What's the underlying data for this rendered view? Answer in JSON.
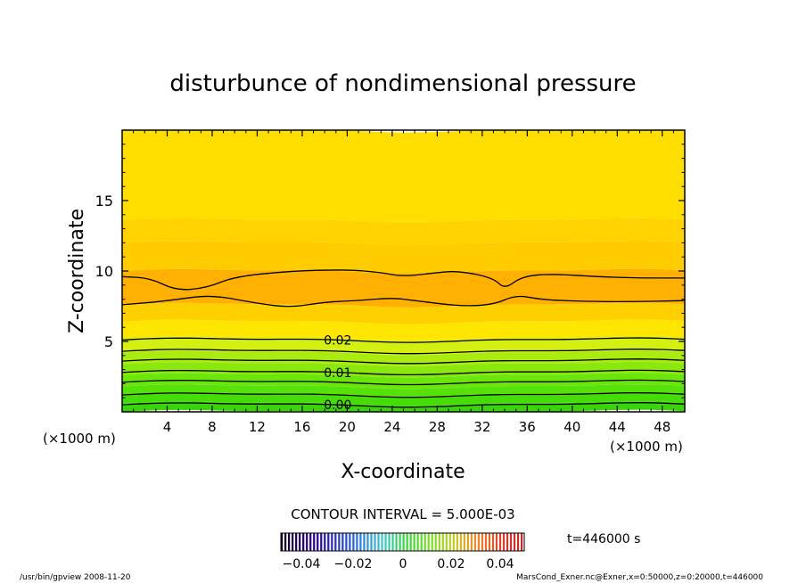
{
  "chart_data": {
    "type": "heatmap",
    "title": "disturbunce of nondimensional pressure",
    "xlabel": "X-coordinate",
    "ylabel": "Z-coordinate",
    "x_unit_left": "(×1000 m)",
    "x_unit_right": "(×1000 m)",
    "xlim": [
      0,
      50
    ],
    "ylim": [
      0,
      20
    ],
    "x_ticks": [
      4,
      8,
      12,
      16,
      20,
      24,
      28,
      32,
      36,
      40,
      44,
      48
    ],
    "y_ticks": [
      5,
      10,
      15
    ],
    "bands": [
      {
        "z0": 0.0,
        "z1": 0.6,
        "color": "#39d40a"
      },
      {
        "z0": 0.6,
        "z1": 1.2,
        "color": "#45dc0a"
      },
      {
        "z0": 1.2,
        "z1": 1.8,
        "color": "#57e10a"
      },
      {
        "z0": 1.8,
        "z1": 2.6,
        "color": "#6ae60b"
      },
      {
        "z0": 2.6,
        "z1": 3.4,
        "color": "#8ae80d"
      },
      {
        "z0": 3.4,
        "z1": 4.2,
        "color": "#aaeb10"
      },
      {
        "z0": 4.2,
        "z1": 5.2,
        "color": "#d4ef12"
      },
      {
        "z0": 5.2,
        "z1": 6.4,
        "color": "#ffe600"
      },
      {
        "z0": 6.4,
        "z1": 7.6,
        "color": "#ffd000"
      },
      {
        "z0": 7.6,
        "z1": 10.0,
        "color": "#ffb000"
      },
      {
        "z0": 10.0,
        "z1": 12.0,
        "color": "#ffcc00"
      },
      {
        "z0": 12.0,
        "z1": 13.6,
        "color": "#ffd200"
      },
      {
        "z0": 13.6,
        "z1": 20.0,
        "color": "#ffde00"
      }
    ],
    "contour_levels_z": [
      0.5,
      1.2,
      2.1,
      2.8,
      3.6,
      4.3,
      5.1
    ],
    "contour_labels": [
      {
        "text": "0.00",
        "x": 17.5,
        "z": 0.5
      },
      {
        "text": "0.01",
        "x": 17.5,
        "z": 2.8
      },
      {
        "text": "0.02",
        "x": 17.5,
        "z": 5.1
      }
    ],
    "upper_contour_top": [
      [
        0,
        9.6
      ],
      [
        2.5,
        9.5
      ],
      [
        4.8,
        8.6
      ],
      [
        7.5,
        8.8
      ],
      [
        10,
        9.6
      ],
      [
        15,
        10.0
      ],
      [
        20,
        10.1
      ],
      [
        23,
        9.9
      ],
      [
        25,
        9.6
      ],
      [
        28,
        9.9
      ],
      [
        30,
        10.0
      ],
      [
        33,
        9.5
      ],
      [
        34,
        8.7
      ],
      [
        35.5,
        9.6
      ],
      [
        38,
        9.8
      ],
      [
        42,
        9.6
      ],
      [
        46,
        9.5
      ],
      [
        50,
        9.5
      ]
    ],
    "upper_contour_bottom": [
      [
        0,
        7.6
      ],
      [
        3,
        7.8
      ],
      [
        5,
        8.0
      ],
      [
        8,
        8.3
      ],
      [
        12,
        7.7
      ],
      [
        15,
        7.4
      ],
      [
        18,
        7.8
      ],
      [
        21,
        7.9
      ],
      [
        24,
        8.1
      ],
      [
        26,
        7.9
      ],
      [
        30,
        7.5
      ],
      [
        33,
        7.6
      ],
      [
        35,
        8.3
      ],
      [
        37,
        8.0
      ],
      [
        39,
        7.9
      ],
      [
        44,
        7.8
      ],
      [
        50,
        7.9
      ]
    ],
    "contour_interval_text": "CONTOUR INTERVAL = 5.000E-03",
    "colorbar_ticks": [
      "−0.04",
      "−0.02",
      "0",
      "0.02",
      "0.04"
    ],
    "time_label": "t=446000 s"
  },
  "footer": {
    "left": "/usr/bin/gpview  2008-11-20",
    "right": "MarsCond_Exner.nc@Exner,x=0:50000,z=0:20000,t=446000"
  }
}
